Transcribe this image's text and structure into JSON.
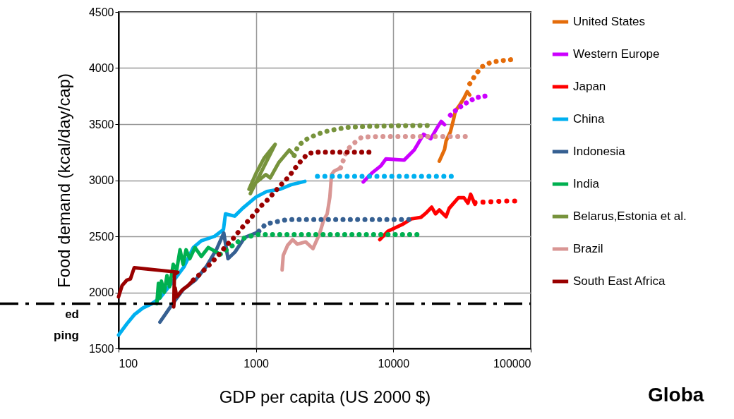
{
  "chart_data": {
    "type": "line",
    "xlabel": "GDP per capita (US 2000 $)",
    "ylabel": "Food demand  (kcal/day/cap)",
    "log": "x",
    "xlim": [
      100,
      100000
    ],
    "xticks": [
      100,
      1000,
      10000,
      100000
    ],
    "ylim": [
      1500,
      4500
    ],
    "yticks": [
      1500,
      2000,
      2500,
      3000,
      3500,
      4000,
      4500
    ],
    "grid": true,
    "legend": "right",
    "annotations": [
      "Globa"
    ],
    "ref_lines": [
      {
        "axis": "y",
        "value": 1900,
        "label": "ed\nping",
        "color": "#000000",
        "line_style": "dashdot"
      }
    ],
    "series": [
      {
        "name": "United States",
        "color": "#e46c0a",
        "line_style": "solid",
        "x": [
          21600,
          23600,
          24200,
          26000,
          27400,
          28300,
          30000,
          32600,
          34500,
          36000
        ],
        "values": [
          3170,
          3275,
          3350,
          3430,
          3540,
          3620,
          3660,
          3730,
          3790,
          3760
        ]
      },
      {
        "name": "Western Europe",
        "color": "#cc00ff",
        "line_style": "solid",
        "x": [
          6040,
          6990,
          8140,
          8830,
          12000,
          14200,
          16600,
          18700,
          21000,
          22300,
          23600
        ],
        "values": [
          2985,
          3065,
          3130,
          3190,
          3180,
          3270,
          3410,
          3370,
          3475,
          3525,
          3495
        ]
      },
      {
        "name": "Japan",
        "color": "#ff0000",
        "line_style": "solid",
        "x": [
          7960,
          9140,
          10300,
          11600,
          13500,
          15900,
          17200,
          19000,
          20300,
          21600,
          24200,
          25500,
          29800,
          32600,
          34900,
          36500,
          39300
        ],
        "values": [
          2470,
          2545,
          2575,
          2605,
          2655,
          2670,
          2705,
          2760,
          2700,
          2735,
          2675,
          2750,
          2845,
          2845,
          2795,
          2875,
          2785
        ]
      },
      {
        "name": "China",
        "color": "#00b0f0",
        "line_style": "solid",
        "x": [
          100,
          115,
          130,
          150,
          175,
          200,
          250,
          300,
          350,
          400,
          500,
          580,
          600,
          700,
          800,
          1000,
          1200,
          1500,
          1800,
          2270
        ],
        "values": [
          1620,
          1720,
          1800,
          1860,
          1900,
          1950,
          2100,
          2230,
          2400,
          2460,
          2500,
          2560,
          2700,
          2680,
          2750,
          2850,
          2900,
          2920,
          2960,
          2990
        ]
      },
      {
        "name": "Indonesia",
        "color": "#366092",
        "line_style": "solid",
        "x": [
          200,
          243,
          297,
          363,
          438,
          517,
          583,
          626,
          704,
          829,
          1000,
          1050
        ],
        "values": [
          1735,
          1885,
          2030,
          2110,
          2235,
          2385,
          2530,
          2300,
          2360,
          2490,
          2530,
          2545
        ]
      },
      {
        "name": "India",
        "color": "#00b050",
        "line_style": "solid",
        "x": [
          190,
          195,
          200,
          205,
          215,
          225,
          235,
          250,
          265,
          280,
          295,
          310,
          330,
          360,
          400,
          450,
          550
        ],
        "values": [
          1900,
          2080,
          1950,
          2100,
          2000,
          2150,
          2050,
          2250,
          2200,
          2380,
          2250,
          2380,
          2300,
          2400,
          2320,
          2400,
          2340
        ]
      },
      {
        "name": "Belarus,Estonia et al.",
        "color": "#77933c",
        "line_style": "solid",
        "x": [
          890,
          1000,
          1150,
          1380,
          910,
          1000,
          1180,
          1270,
          1470,
          1750,
          1900
        ],
        "values": [
          2920,
          3060,
          3200,
          3320,
          2880,
          2980,
          3050,
          3020,
          3160,
          3270,
          3220
        ]
      },
      {
        "name": "Brazil",
        "color": "#d99694",
        "line_style": "solid",
        "x": [
          1550,
          1580,
          1700,
          1850,
          2000,
          2300,
          2600,
          2900,
          3100,
          3300,
          3450,
          3550,
          3700,
          4130
        ],
        "values": [
          2200,
          2330,
          2420,
          2470,
          2430,
          2450,
          2390,
          2520,
          2640,
          2700,
          2850,
          3050,
          3080,
          3110
        ]
      },
      {
        "name": "South East Africa",
        "color": "#990000",
        "line_style": "solid",
        "x": [
          100,
          106,
          115,
          122,
          130,
          270,
          255,
          252,
          258,
          265,
          290,
          320,
          350
        ],
        "values": [
          1960,
          2060,
          2110,
          2120,
          2220,
          2180,
          2160,
          1870,
          2040,
          1960,
          2020,
          2060,
          2110
        ]
      },
      {
        "color": "#e46c0a",
        "line_style": "dotted",
        "x": [
          36000,
          39400,
          43800,
          51000,
          60000,
          71600
        ],
        "values": [
          3860,
          3935,
          4010,
          4050,
          4065,
          4075
        ]
      },
      {
        "color": "#cc00ff",
        "line_style": "dotted",
        "x": [
          26000,
          29500,
          34100,
          39700,
          46600
        ],
        "values": [
          3580,
          3640,
          3690,
          3735,
          3750
        ]
      },
      {
        "color": "#ff0000",
        "line_style": "dotted",
        "x": [
          39300,
          45800,
          54800,
          64700,
          76700
        ],
        "values": [
          2800,
          2805,
          2810,
          2815,
          2815
        ]
      },
      {
        "color": "#00b0f0",
        "line_style": "dotted",
        "x": [
          2800,
          26500
        ],
        "values": [
          3035,
          3035
        ]
      },
      {
        "color": "#366092",
        "line_style": "dotted",
        "x": [
          1050,
          1180,
          1415,
          1700,
          13000
        ],
        "values": [
          2545,
          2610,
          2630,
          2650,
          2650
        ]
      },
      {
        "color": "#00b050",
        "line_style": "dotted",
        "x": [
          550,
          800,
          1000,
          14900
        ],
        "values": [
          2340,
          2480,
          2515,
          2515
        ]
      },
      {
        "color": "#77933c",
        "line_style": "dotted",
        "x": [
          1900,
          2020,
          2290,
          2680,
          3120,
          3690,
          4520,
          6420,
          10300,
          17700
        ],
        "values": [
          3220,
          3305,
          3360,
          3400,
          3430,
          3450,
          3470,
          3480,
          3485,
          3488
        ]
      },
      {
        "color": "#d99694",
        "line_style": "dotted",
        "x": [
          4130,
          4600,
          5170,
          5900,
          8150,
          33500
        ],
        "values": [
          3110,
          3270,
          3330,
          3385,
          3390,
          3390
        ]
      },
      {
        "color": "#990000",
        "line_style": "dotted",
        "x": [
          350,
          385,
          433,
          488,
          549,
          611,
          688,
          763,
          859,
          967,
          1077,
          1214,
          1367,
          1537,
          1730,
          1920,
          2135,
          2400,
          2860,
          6670
        ],
        "values": [
          2110,
          2155,
          2215,
          2280,
          2350,
          2420,
          2485,
          2555,
          2625,
          2695,
          2765,
          2825,
          2895,
          2965,
          3030,
          3105,
          3175,
          3240,
          3250,
          3250
        ]
      }
    ]
  }
}
